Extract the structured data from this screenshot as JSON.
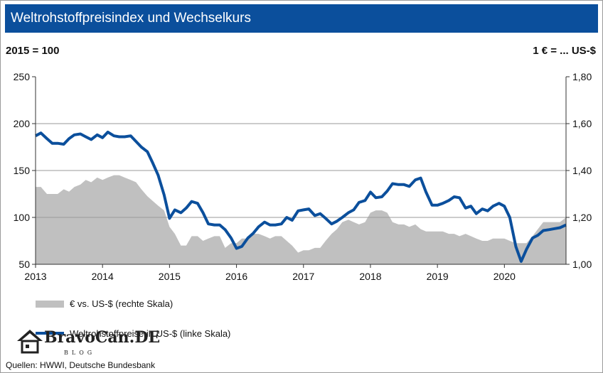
{
  "title": "Weltrohstoffpreisindex und Wechselkurs",
  "left_axis_label": "2015 = 100",
  "right_axis_label": "1 € = ... US-$",
  "source": "Quellen: HWWI, Deutsche Bundesbank",
  "logo": {
    "text": "BravoCan.DE",
    "sub": "BLOG"
  },
  "colors": {
    "title_bg": "#0b4f9c",
    "line": "#0b4f9c",
    "area": "#c0c0c0"
  },
  "chart_data": {
    "type": "line",
    "x_ticks": [
      "2013",
      "2014",
      "2015",
      "2016",
      "2017",
      "2018",
      "2019",
      "2020"
    ],
    "y_left_ticks": [
      "50",
      "100",
      "150",
      "200",
      "250"
    ],
    "y_right_ticks": [
      "1,00",
      "1,20",
      "1,40",
      "1,60",
      "1,80"
    ],
    "ylim_left": [
      50,
      250
    ],
    "ylim_right": [
      1.0,
      1.8
    ],
    "xlim": [
      2013.0,
      2020.92
    ],
    "grid": true,
    "legend_position": "bottom",
    "series": [
      {
        "name": "€ vs. US-$ (rechte Skala)",
        "axis": "right",
        "kind": "area",
        "x": [
          2013.0,
          2013.08,
          2013.17,
          2013.25,
          2013.33,
          2013.42,
          2013.5,
          2013.58,
          2013.67,
          2013.75,
          2013.83,
          2013.92,
          2014.0,
          2014.08,
          2014.17,
          2014.25,
          2014.33,
          2014.42,
          2014.5,
          2014.58,
          2014.67,
          2014.75,
          2014.83,
          2014.92,
          2015.0,
          2015.08,
          2015.17,
          2015.25,
          2015.33,
          2015.42,
          2015.5,
          2015.58,
          2015.67,
          2015.75,
          2015.83,
          2015.92,
          2016.0,
          2016.08,
          2016.17,
          2016.25,
          2016.33,
          2016.42,
          2016.5,
          2016.58,
          2016.67,
          2016.75,
          2016.83,
          2016.92,
          2017.0,
          2017.08,
          2017.17,
          2017.25,
          2017.33,
          2017.42,
          2017.5,
          2017.58,
          2017.67,
          2017.75,
          2017.83,
          2017.92,
          2018.0,
          2018.08,
          2018.17,
          2018.25,
          2018.33,
          2018.42,
          2018.5,
          2018.58,
          2018.67,
          2018.75,
          2018.83,
          2018.92,
          2019.0,
          2019.08,
          2019.17,
          2019.25,
          2019.33,
          2019.42,
          2019.5,
          2019.58,
          2019.67,
          2019.75,
          2019.83,
          2019.92,
          2020.0,
          2020.08,
          2020.17,
          2020.25,
          2020.33,
          2020.42,
          2020.5,
          2020.58,
          2020.67,
          2020.75,
          2020.83,
          2020.92
        ],
        "values": [
          1.33,
          1.33,
          1.3,
          1.3,
          1.3,
          1.32,
          1.31,
          1.33,
          1.34,
          1.36,
          1.35,
          1.37,
          1.36,
          1.37,
          1.38,
          1.38,
          1.37,
          1.36,
          1.35,
          1.32,
          1.29,
          1.27,
          1.25,
          1.23,
          1.16,
          1.13,
          1.08,
          1.08,
          1.12,
          1.12,
          1.1,
          1.11,
          1.12,
          1.12,
          1.07,
          1.09,
          1.09,
          1.11,
          1.11,
          1.13,
          1.13,
          1.12,
          1.11,
          1.12,
          1.12,
          1.1,
          1.08,
          1.05,
          1.06,
          1.06,
          1.07,
          1.07,
          1.1,
          1.13,
          1.15,
          1.18,
          1.19,
          1.18,
          1.17,
          1.18,
          1.22,
          1.23,
          1.23,
          1.22,
          1.18,
          1.17,
          1.17,
          1.16,
          1.17,
          1.15,
          1.14,
          1.14,
          1.14,
          1.14,
          1.13,
          1.13,
          1.12,
          1.13,
          1.12,
          1.11,
          1.1,
          1.1,
          1.11,
          1.11,
          1.11,
          1.1,
          1.09,
          1.09,
          1.09,
          1.12,
          1.15,
          1.18,
          1.18,
          1.18,
          1.18,
          1.2
        ]
      },
      {
        "name": "Weltrohstoffpreise in US-$ (linke Skala)",
        "axis": "left",
        "kind": "line",
        "x": [
          2013.0,
          2013.08,
          2013.17,
          2013.25,
          2013.33,
          2013.42,
          2013.5,
          2013.58,
          2013.67,
          2013.75,
          2013.83,
          2013.92,
          2014.0,
          2014.08,
          2014.17,
          2014.25,
          2014.33,
          2014.42,
          2014.5,
          2014.58,
          2014.67,
          2014.75,
          2014.83,
          2014.92,
          2015.0,
          2015.08,
          2015.17,
          2015.25,
          2015.33,
          2015.42,
          2015.5,
          2015.58,
          2015.67,
          2015.75,
          2015.83,
          2015.92,
          2016.0,
          2016.08,
          2016.17,
          2016.25,
          2016.33,
          2016.42,
          2016.5,
          2016.58,
          2016.67,
          2016.75,
          2016.83,
          2016.92,
          2017.0,
          2017.08,
          2017.17,
          2017.25,
          2017.33,
          2017.42,
          2017.5,
          2017.58,
          2017.67,
          2017.75,
          2017.83,
          2017.92,
          2018.0,
          2018.08,
          2018.17,
          2018.25,
          2018.33,
          2018.42,
          2018.5,
          2018.58,
          2018.67,
          2018.75,
          2018.83,
          2018.92,
          2019.0,
          2019.08,
          2019.17,
          2019.25,
          2019.33,
          2019.42,
          2019.5,
          2019.58,
          2019.67,
          2019.75,
          2019.83,
          2019.92,
          2020.0,
          2020.08,
          2020.17,
          2020.25,
          2020.33,
          2020.42,
          2020.5,
          2020.58,
          2020.67,
          2020.75,
          2020.83,
          2020.92
        ],
        "values": [
          187,
          190,
          184,
          179,
          179,
          178,
          184,
          188,
          189,
          186,
          183,
          188,
          185,
          191,
          187,
          186,
          186,
          187,
          181,
          175,
          170,
          158,
          145,
          124,
          99,
          108,
          105,
          110,
          117,
          115,
          105,
          93,
          92,
          92,
          87,
          78,
          67,
          69,
          78,
          83,
          90,
          95,
          92,
          92,
          93,
          100,
          97,
          107,
          108,
          109,
          102,
          104,
          99,
          93,
          96,
          100,
          105,
          108,
          116,
          118,
          127,
          121,
          122,
          128,
          136,
          135,
          135,
          133,
          140,
          142,
          127,
          113,
          113,
          115,
          118,
          122,
          121,
          110,
          112,
          104,
          109,
          107,
          112,
          115,
          112,
          100,
          69,
          53,
          66,
          78,
          81,
          86,
          87,
          88,
          89,
          92
        ]
      }
    ]
  }
}
